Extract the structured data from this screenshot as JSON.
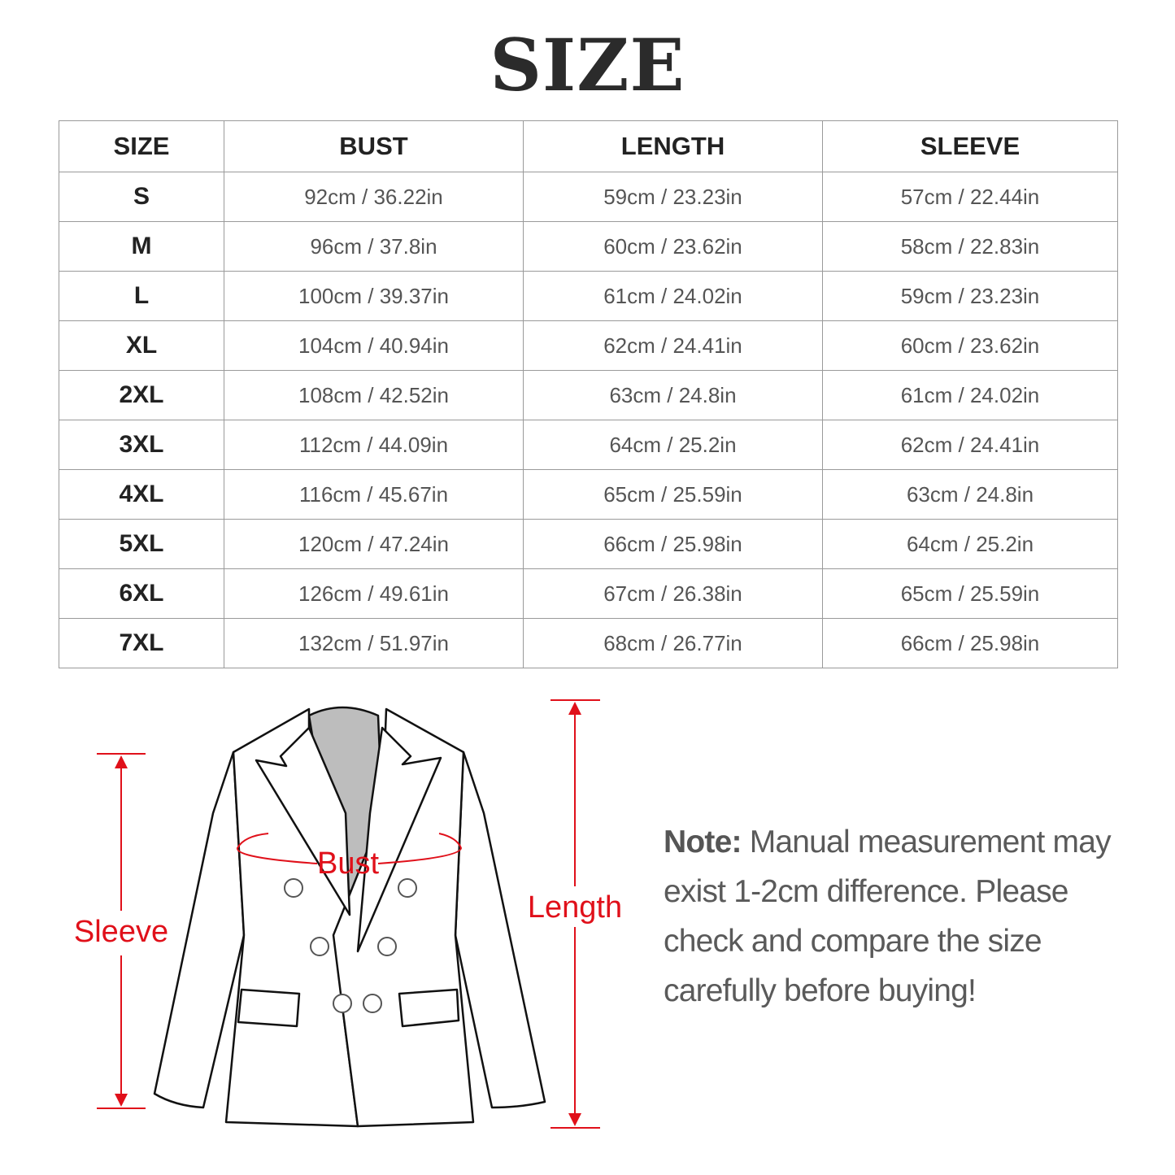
{
  "title": "SIZE",
  "table": {
    "headers": [
      "SIZE",
      "BUST",
      "LENGTH",
      "SLEEVE"
    ],
    "rows": [
      [
        "S",
        "92cm / 36.22in",
        "59cm / 23.23in",
        "57cm / 22.44in"
      ],
      [
        "M",
        "96cm / 37.8in",
        "60cm / 23.62in",
        "58cm / 22.83in"
      ],
      [
        "L",
        "100cm / 39.37in",
        "61cm / 24.02in",
        "59cm / 23.23in"
      ],
      [
        "XL",
        "104cm / 40.94in",
        "62cm / 24.41in",
        "60cm / 23.62in"
      ],
      [
        "2XL",
        "108cm / 42.52in",
        "63cm / 24.8in",
        "61cm / 24.02in"
      ],
      [
        "3XL",
        "112cm / 44.09in",
        "64cm / 25.2in",
        "62cm / 24.41in"
      ],
      [
        "4XL",
        "116cm / 45.67in",
        "65cm / 25.59in",
        "63cm / 24.8in"
      ],
      [
        "5XL",
        "120cm / 47.24in",
        "66cm / 25.98in",
        "64cm / 25.2in"
      ],
      [
        "6XL",
        "126cm / 49.61in",
        "67cm / 26.38in",
        "65cm / 25.59in"
      ],
      [
        "7XL",
        "132cm / 51.97in",
        "68cm / 26.77in",
        "66cm / 25.98in"
      ]
    ]
  },
  "diagram": {
    "labels": {
      "sleeve": "Sleeve",
      "bust": "Bust",
      "length": "Length"
    },
    "accent_color": "#e0101a"
  },
  "note": {
    "label": "Note:",
    "text": " Manual measurement may exist 1-2cm difference. Please check and compare the size carefully before buying!"
  }
}
